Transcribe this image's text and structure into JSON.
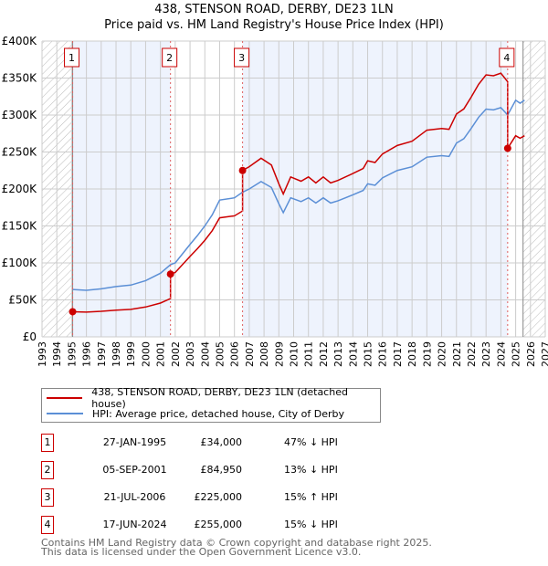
{
  "chart_data": {
    "type": "line",
    "title": "438, STENSON ROAD, DERBY, DE23 1LN",
    "subtitle": "Price paid vs. HM Land Registry's House Price Index (HPI)",
    "xlim": [
      1993,
      2027
    ],
    "ylim": [
      0,
      400000
    ],
    "x_ticks": [
      "1993",
      "1994",
      "1995",
      "1996",
      "1997",
      "1998",
      "1999",
      "2000",
      "2001",
      "2002",
      "2003",
      "2004",
      "2005",
      "2006",
      "2007",
      "2008",
      "2009",
      "2010",
      "2011",
      "2012",
      "2013",
      "2014",
      "2015",
      "2016",
      "2017",
      "2018",
      "2019",
      "2020",
      "2021",
      "2022",
      "2023",
      "2024",
      "2025",
      "2026",
      "2027"
    ],
    "y_ticks": [
      {
        "v": 0,
        "label": "£0"
      },
      {
        "v": 50000,
        "label": "£50K"
      },
      {
        "v": 100000,
        "label": "£100K"
      },
      {
        "v": 150000,
        "label": "£150K"
      },
      {
        "v": 200000,
        "label": "£200K"
      },
      {
        "v": 250000,
        "label": "£250K"
      },
      {
        "v": 300000,
        "label": "£300K"
      },
      {
        "v": 350000,
        "label": "£350K"
      },
      {
        "v": 400000,
        "label": "£400K"
      }
    ],
    "hatch_before": 1995.07,
    "hatch_after": 2025.5,
    "hpi_x": [
      1995.07,
      1996,
      1997,
      1998,
      1999,
      2000,
      2001,
      2001.68,
      2002,
      2003,
      2003.5,
      2004,
      2004.5,
      2005,
      2006,
      2006.55,
      2007,
      2007.8,
      2008.5,
      2009,
      2009.3,
      2009.8,
      2010.5,
      2011,
      2011.5,
      2012,
      2012.5,
      2013,
      2014,
      2014.7,
      2015,
      2015.5,
      2016,
      2017,
      2018,
      2019,
      2020,
      2020.5,
      2021,
      2021.5,
      2022,
      2022.5,
      2023,
      2023.5,
      2024,
      2024.46,
      2025,
      2025.3,
      2025.6
    ],
    "hpi_y": [
      64000,
      63000,
      65000,
      68000,
      70000,
      76000,
      86000,
      97600,
      100000,
      125000,
      137000,
      150000,
      165000,
      185000,
      188000,
      195600,
      200000,
      210000,
      202000,
      180000,
      168000,
      188000,
      183000,
      188000,
      181000,
      188000,
      181000,
      184000,
      192000,
      198000,
      207000,
      205000,
      215000,
      225000,
      230000,
      243000,
      245000,
      244000,
      262000,
      268000,
      282000,
      297000,
      308000,
      307000,
      310000,
      300000,
      320000,
      316000,
      320000
    ],
    "series": [
      {
        "name": "438, STENSON ROAD, DERBY, DE23 1LN (detached house)",
        "color": "#cc0000"
      },
      {
        "name": "HPI: Average price, detached house, City of Derby",
        "color": "#5b8fd6"
      }
    ],
    "sales": [
      {
        "n": "1",
        "x": 1995.07,
        "date": "27-JAN-1995",
        "price": 34000,
        "price_label": "£34,000",
        "hpi": "47% ↓ HPI"
      },
      {
        "n": "2",
        "x": 2001.68,
        "date": "05-SEP-2001",
        "price": 84950,
        "price_label": "£84,950",
        "hpi": "13% ↓ HPI"
      },
      {
        "n": "3",
        "x": 2006.55,
        "date": "21-JUL-2006",
        "price": 225000,
        "price_label": "£225,000",
        "hpi": "15% ↑ HPI"
      },
      {
        "n": "4",
        "x": 2024.46,
        "date": "17-JUN-2024",
        "price": 255000,
        "price_label": "£255,000",
        "hpi": "15% ↓ HPI"
      }
    ]
  },
  "footer": {
    "line1": "Contains HM Land Registry data © Crown copyright and database right 2025.",
    "line2": "This data is licensed under the Open Government Licence v3.0."
  }
}
